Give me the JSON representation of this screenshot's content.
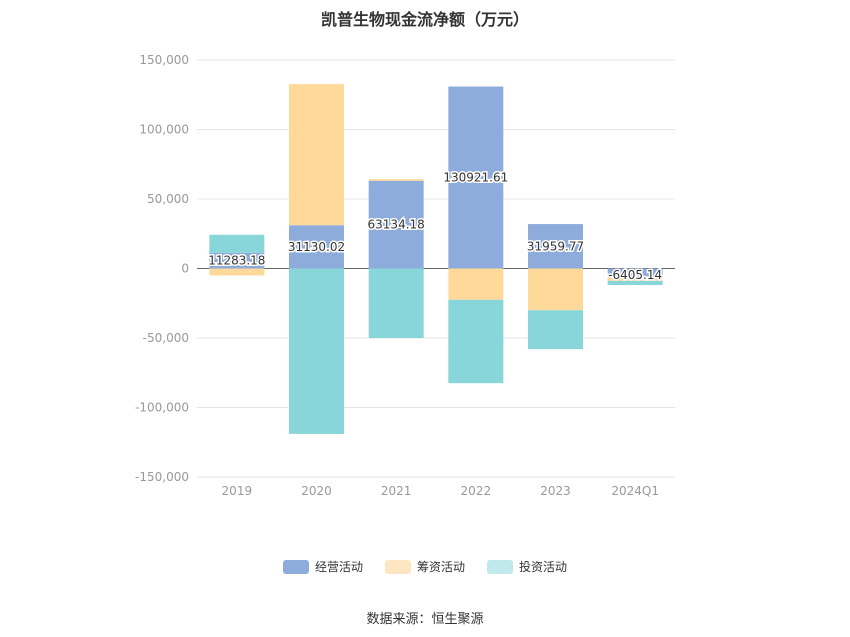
{
  "title": "凯普生物现金流净额（万元）",
  "source": "数据来源：恒生聚源",
  "chart_data": {
    "type": "bar",
    "stacked": true,
    "title": "凯普生物现金流净额（万元）",
    "categories": [
      "2019",
      "2020",
      "2021",
      "2022",
      "2023",
      "2024Q1"
    ],
    "y_ticks": [
      "150,000",
      "100,000",
      "50,000",
      "0",
      "-50,000",
      "-100,000",
      "-150,000"
    ],
    "ylim": [
      -150000,
      150000
    ],
    "grid": true,
    "legend_position": "bottom",
    "series": [
      {
        "name": "经营活动",
        "color": "#8eacdb",
        "values": [
          11283.18,
          31130.02,
          63134.18,
          130921.61,
          31959.77,
          -6405.14
        ],
        "labels": [
          "11283.18",
          "31130.02",
          "63134.18",
          "130921.61",
          "31959.77",
          "-6405.14"
        ]
      },
      {
        "name": "筹资活动",
        "color": "#ffd99a",
        "values": [
          -5000,
          101500,
          1200,
          -22500,
          -30000,
          -2500
        ]
      },
      {
        "name": "投资活动",
        "color": "#88d5da",
        "values": [
          13000,
          -119000,
          -50000,
          -60000,
          -28000,
          -3000
        ]
      }
    ]
  },
  "legend_colors": [
    "#8eacdb",
    "#ffe6c3",
    "#bfe9ea"
  ]
}
